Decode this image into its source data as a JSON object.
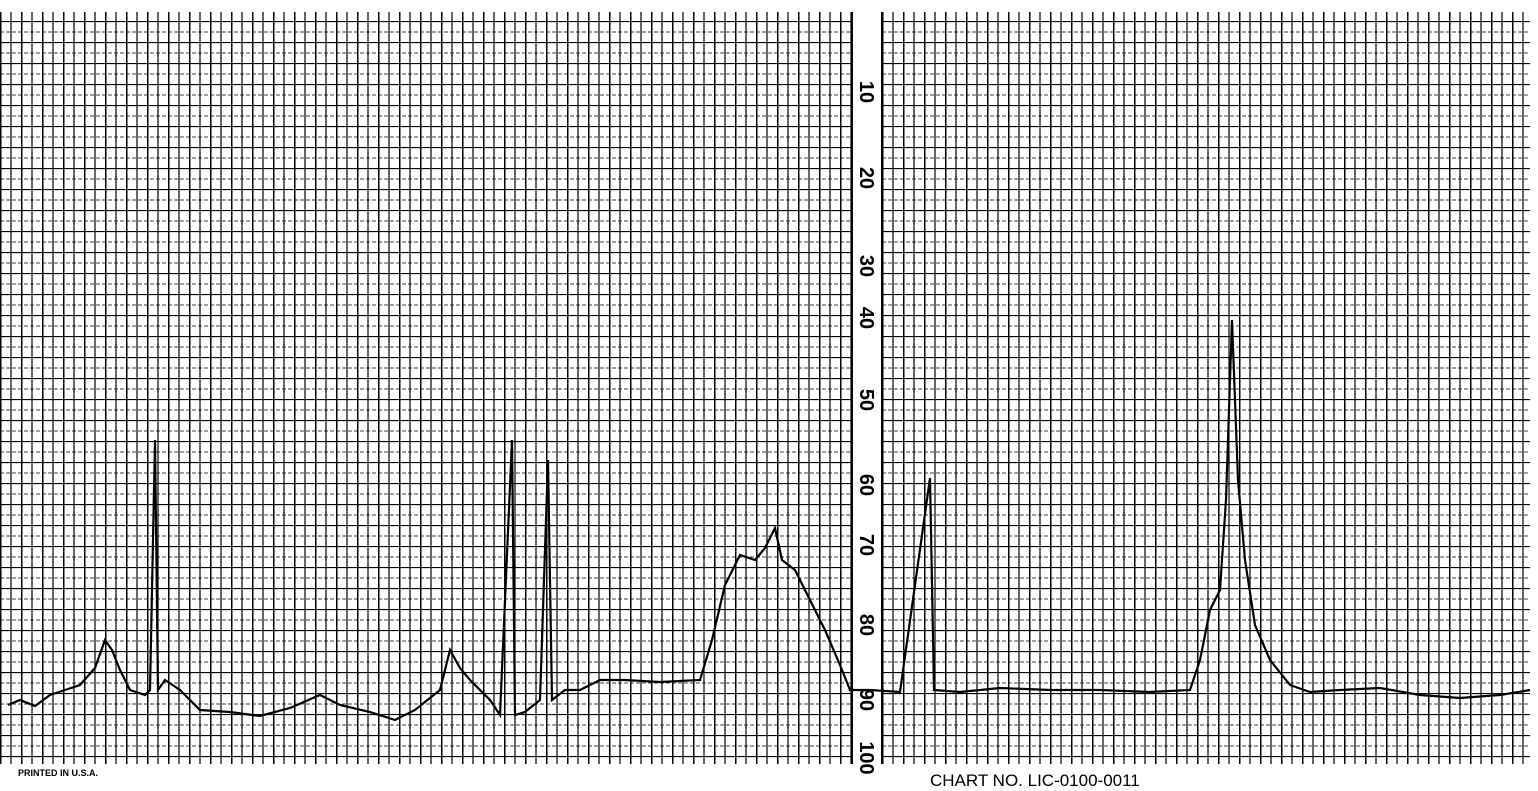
{
  "scale": {
    "labels": [
      "10",
      "20",
      "30",
      "40",
      "50",
      "60",
      "70",
      "80",
      "90",
      "100"
    ]
  },
  "footer": {
    "left": "PRINTED IN U.S.A.",
    "right": "CHART NO. LIC-0100-0011"
  }
}
